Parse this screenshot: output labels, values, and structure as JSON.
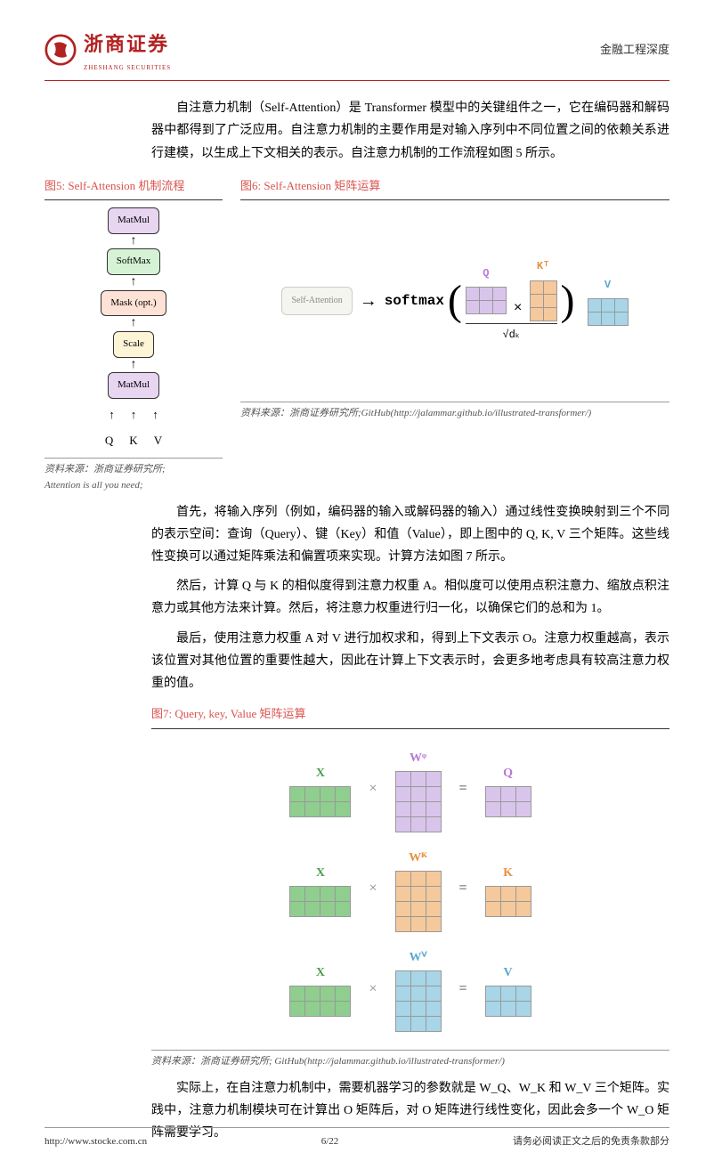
{
  "header": {
    "company_cn": "浙商证券",
    "company_en": "ZHESHANG SECURITIES",
    "category": "金融工程深度"
  },
  "paragraphs": {
    "p1": "自注意力机制（Self-Attention）是 Transformer 模型中的关键组件之一，它在编码器和解码器中都得到了广泛应用。自注意力机制的主要作用是对输入序列中不同位置之间的依赖关系进行建模，以生成上下文相关的表示。自注意力机制的工作流程如图 5 所示。",
    "p2": "首先，将输入序列（例如，编码器的输入或解码器的输入）通过线性变换映射到三个不同的表示空间：查询（Query）、键（Key）和值（Value），即上图中的 Q, K, V 三个矩阵。这些线性变换可以通过矩阵乘法和偏置项来实现。计算方法如图 7 所示。",
    "p3": "然后，计算 Q 与 K 的相似度得到注意力权重 A。相似度可以使用点积注意力、缩放点积注意力或其他方法来计算。然后，将注意力权重进行归一化，以确保它们的总和为 1。",
    "p4": "最后，使用注意力权重 A 对 V 进行加权求和，得到上下文表示 O。注意力权重越高，表示该位置对其他位置的重要性越大，因此在计算上下文表示时，会更多地考虑具有较高注意力权重的值。",
    "p5": "实际上，在自注意力机制中，需要机器学习的参数就是 W_Q、W_K 和 W_V 三个矩阵。实践中，注意力机制模块可在计算出 O 矩阵后，对 O 矩阵进行线性变化，因此会多一个 W_O 矩阵需要学习。"
  },
  "fig5": {
    "title": "图5:   Self-Attension 机制流程",
    "boxes": [
      "MatMul",
      "SoftMax",
      "Mask (opt.)",
      "Scale",
      "MatMul"
    ],
    "box_colors": [
      "#e8d5f2",
      "#d5f2d5",
      "#fde2d5",
      "#fdf5d5",
      "#e8d5f2"
    ],
    "inputs": [
      "Q",
      "K",
      "V"
    ],
    "source": "资料来源：浙商证券研究所;",
    "source2": "Attention is all you need;"
  },
  "fig6": {
    "title": "图6:   Self-Attension 矩阵运算",
    "sa_label": "Self-Attention",
    "arrow": "→",
    "softmax": "softmax",
    "q_label": "Q",
    "kt_label": "Kᵀ",
    "v_label": "V",
    "denom": "√dₖ",
    "q_color": "#d9c5ec",
    "k_color": "#f5c99b",
    "v_color": "#a8d5e8",
    "q_dims": {
      "rows": 2,
      "cols": 3
    },
    "k_dims": {
      "rows": 3,
      "cols": 2
    },
    "v_dims": {
      "rows": 2,
      "cols": 3
    },
    "source": "资料来源：浙商证券研究所;GitHub(http://jalammar.github.io/illustrated-transformer/)"
  },
  "fig7": {
    "title": "图7:   Query, key, Value 矩阵运算",
    "rows": [
      {
        "x_label": "X",
        "x_color": "#8fce8f",
        "x_dims": {
          "rows": 2,
          "cols": 4
        },
        "w_label": "Wᵠ",
        "w_color": "#d9c5ec",
        "w_dims": {
          "rows": 4,
          "cols": 3
        },
        "r_label": "Q",
        "r_color": "#d9c5ec",
        "r_label_color": "#b878d8",
        "r_dims": {
          "rows": 2,
          "cols": 3
        }
      },
      {
        "x_label": "X",
        "x_color": "#8fce8f",
        "x_dims": {
          "rows": 2,
          "cols": 4
        },
        "w_label": "Wᴷ",
        "w_color": "#f5c99b",
        "w_dims": {
          "rows": 4,
          "cols": 3
        },
        "r_label": "K",
        "r_color": "#f5c99b",
        "r_label_color": "#e89040",
        "r_dims": {
          "rows": 2,
          "cols": 3
        }
      },
      {
        "x_label": "X",
        "x_color": "#8fce8f",
        "x_dims": {
          "rows": 2,
          "cols": 4
        },
        "w_label": "Wⱽ",
        "w_color": "#a8d5e8",
        "w_dims": {
          "rows": 4,
          "cols": 3
        },
        "r_label": "V",
        "r_color": "#a8d5e8",
        "r_label_color": "#5ba8d0",
        "r_dims": {
          "rows": 2,
          "cols": 3
        }
      }
    ],
    "x_label_color": "#4a9e4a",
    "w_label_colors": [
      "#b878d8",
      "#e89040",
      "#5ba8d0"
    ],
    "source": "资料来源：浙商证券研究所; GitHub(http://jalammar.github.io/illustrated-transformer/)"
  },
  "footer": {
    "url": "http://www.stocke.com.cn",
    "page": "6/22",
    "disclaimer": "请务必阅读正文之后的免责条款部分"
  }
}
